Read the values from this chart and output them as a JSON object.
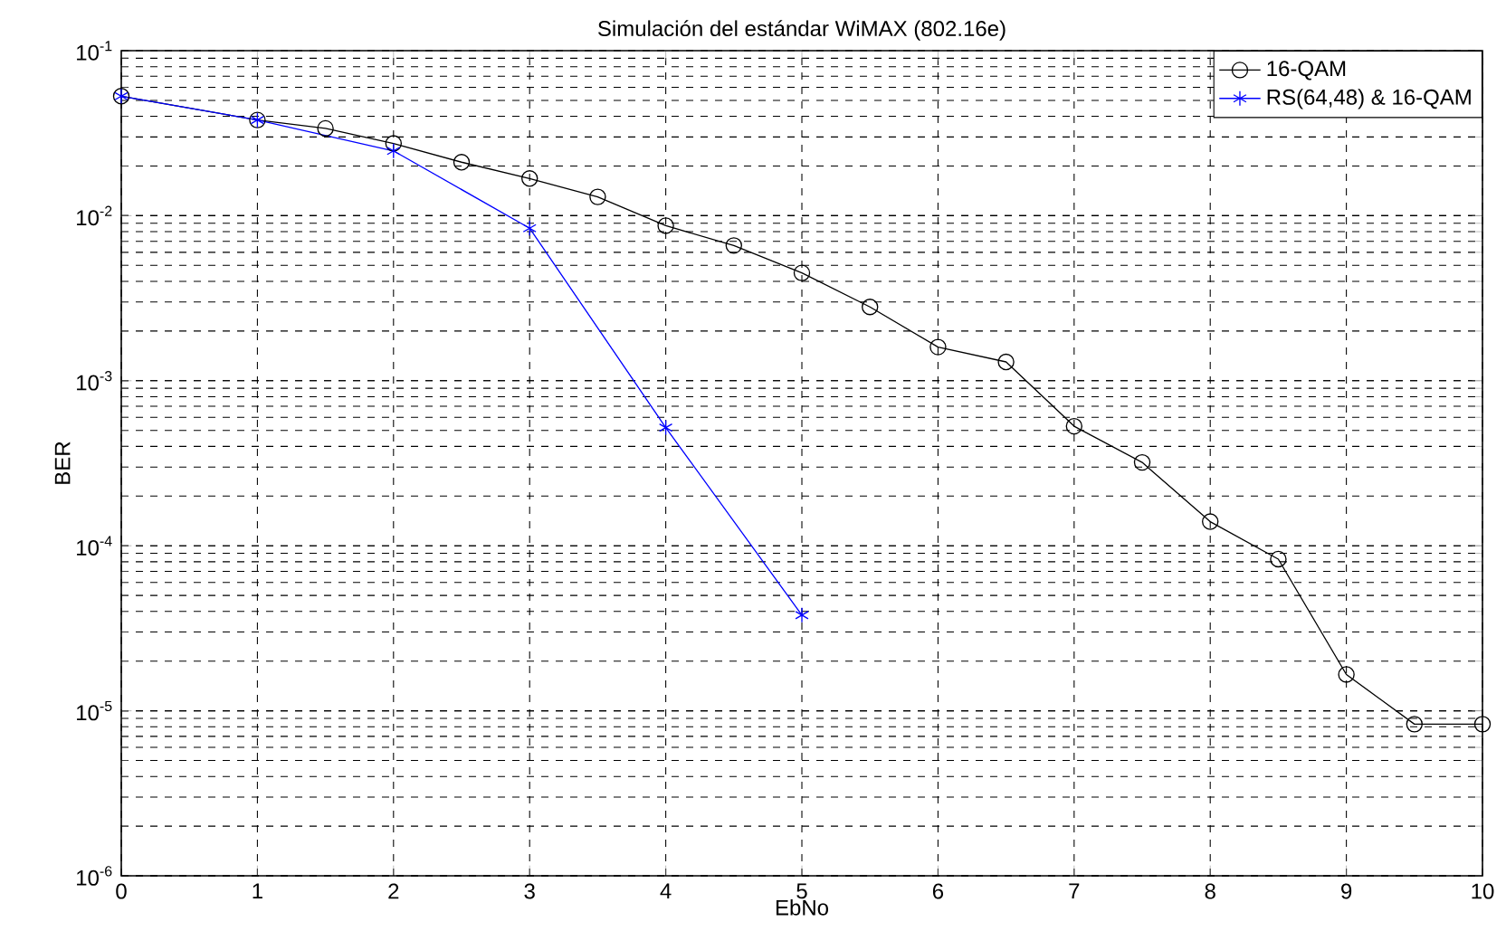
{
  "chart_data": {
    "type": "line",
    "title": "Simulación del estándar WiMAX (802.16e)",
    "xlabel": "EbNo",
    "ylabel": "BER",
    "x": [
      0,
      1,
      1.5,
      2,
      2.5,
      3,
      3.5,
      4,
      4.5,
      5,
      5.5,
      6,
      6.5,
      7,
      7.5,
      8,
      8.5,
      9,
      9.5,
      10
    ],
    "series": [
      {
        "name": "16-QAM",
        "color": "#000000",
        "marker": "circle",
        "values": [
          0.053,
          0.038,
          0.0338,
          0.0274,
          0.0211,
          0.0168,
          0.013,
          0.0087,
          0.0066,
          0.0045,
          0.0028,
          0.0016,
          0.0013,
          0.00053,
          0.00032,
          0.00014,
          8.3e-05,
          1.66e-05,
          8.3e-06,
          8.3e-06
        ]
      },
      {
        "name": "RS(64,48) & 16-QAM",
        "color": "#0000ff",
        "marker": "cross",
        "x": [
          0,
          1,
          2,
          3,
          4,
          5
        ],
        "values": [
          0.053,
          0.038,
          0.0247,
          0.0084,
          0.00052,
          3.8e-05
        ]
      }
    ],
    "log": "y",
    "grid": true,
    "legend": "top right",
    "line_style": "solid",
    "xlim": [
      0,
      10
    ],
    "ylim": [
      1e-06,
      0.1
    ],
    "xticks": [
      0,
      1,
      2,
      3,
      4,
      5,
      6,
      7,
      8,
      9,
      10
    ],
    "yticks": [
      {
        "value": 1e-06,
        "label": "10$^{-6}$"
      },
      {
        "value": 1e-05,
        "label": "10$^{-5}$"
      },
      {
        "value": 0.0001,
        "label": "10$^{-4}$"
      },
      {
        "value": 0.001,
        "label": "10$^{-3}$"
      },
      {
        "value": 0.01,
        "label": "10$^{-2}$"
      },
      {
        "value": 0.1,
        "label": "10$^{-1}$"
      }
    ]
  }
}
